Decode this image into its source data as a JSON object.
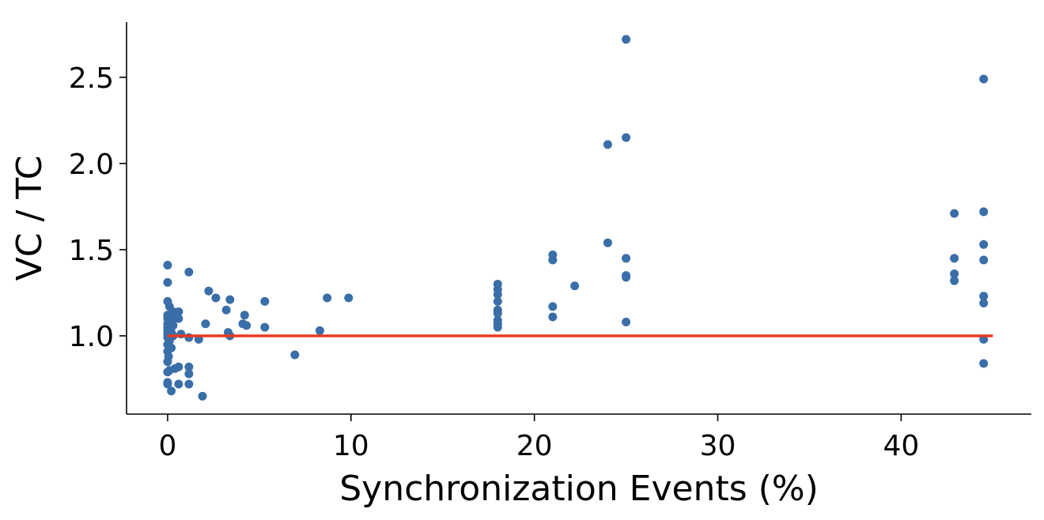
{
  "chart_data": {
    "type": "scatter",
    "title": "",
    "xlabel": "Synchronization Events (%)",
    "ylabel": "VC / TC",
    "xlim": [
      -2.24,
      47.1
    ],
    "ylim": [
      0.546,
      2.82
    ],
    "xticks": [
      0,
      10,
      20,
      30,
      40
    ],
    "xtick_labels": [
      "0",
      "10",
      "20",
      "30",
      "40"
    ],
    "yticks": [
      1.0,
      1.5,
      2.0,
      2.5
    ],
    "ytick_labels": [
      "1.0",
      "1.5",
      "2.0",
      "2.5"
    ],
    "grid": false,
    "point_color": "#3a6ea8",
    "reference_line": {
      "y": 1.0,
      "x": [
        0,
        45
      ],
      "color": "#e8391f"
    },
    "points": [
      [
        0,
        1.41
      ],
      [
        0,
        1.31
      ],
      [
        1.16,
        1.37
      ],
      [
        0,
        1.2
      ],
      [
        0.1,
        1.17
      ],
      [
        0.6,
        1.14
      ],
      [
        0.3,
        1.14
      ],
      [
        0.2,
        1.12
      ],
      [
        0,
        1.12
      ],
      [
        0.4,
        1.1
      ],
      [
        0.6,
        1.1
      ],
      [
        0,
        1.1
      ],
      [
        0.2,
        1.08
      ],
      [
        0,
        1.07
      ],
      [
        0.3,
        1.06
      ],
      [
        0,
        1.05
      ],
      [
        0.1,
        1.04
      ],
      [
        0,
        1.03
      ],
      [
        0.2,
        1.02
      ],
      [
        0,
        1.01
      ],
      [
        0.3,
        1.0
      ],
      [
        0,
        0.99
      ],
      [
        0.1,
        0.97
      ],
      [
        0,
        0.95
      ],
      [
        0.2,
        0.93
      ],
      [
        0,
        0.91
      ],
      [
        0.05,
        0.88
      ],
      [
        0,
        0.85
      ],
      [
        2.24,
        1.26
      ],
      [
        2.63,
        1.22
      ],
      [
        3.4,
        1.21
      ],
      [
        3.2,
        1.15
      ],
      [
        4.2,
        1.12
      ],
      [
        4.1,
        1.07
      ],
      [
        4.3,
        1.06
      ],
      [
        5.3,
        1.2
      ],
      [
        5.3,
        1.05
      ],
      [
        2.07,
        1.07
      ],
      [
        3.3,
        1.02
      ],
      [
        3.4,
        1.0
      ],
      [
        0.73,
        1.01
      ],
      [
        1.16,
        0.99
      ],
      [
        1.7,
        0.98
      ],
      [
        6.94,
        0.89
      ],
      [
        8.3,
        1.03
      ],
      [
        8.7,
        1.22
      ],
      [
        9.87,
        1.22
      ],
      [
        1.16,
        0.82
      ],
      [
        1.16,
        0.78
      ],
      [
        1.16,
        0.72
      ],
      [
        0.6,
        0.72
      ],
      [
        1.9,
        0.65
      ],
      [
        0.2,
        0.68
      ],
      [
        0,
        0.72
      ],
      [
        0,
        0.73
      ],
      [
        0,
        0.79
      ],
      [
        0.4,
        0.81
      ],
      [
        0.6,
        0.82
      ],
      [
        0.1,
        0.8
      ],
      [
        18,
        1.3
      ],
      [
        18,
        1.27
      ],
      [
        18,
        1.24
      ],
      [
        18,
        1.2
      ],
      [
        18,
        1.15
      ],
      [
        18,
        1.13
      ],
      [
        18,
        1.09
      ],
      [
        18,
        1.07
      ],
      [
        18,
        1.05
      ],
      [
        21,
        1.47
      ],
      [
        21,
        1.44
      ],
      [
        21,
        1.17
      ],
      [
        21,
        1.11
      ],
      [
        22.2,
        1.29
      ],
      [
        24,
        2.11
      ],
      [
        24,
        1.54
      ],
      [
        25,
        2.72
      ],
      [
        25,
        2.15
      ],
      [
        25,
        1.45
      ],
      [
        25,
        1.35
      ],
      [
        25,
        1.34
      ],
      [
        25,
        1.08
      ],
      [
        42.9,
        1.71
      ],
      [
        42.9,
        1.45
      ],
      [
        42.9,
        1.36
      ],
      [
        42.9,
        1.32
      ],
      [
        44.5,
        2.49
      ],
      [
        44.5,
        1.72
      ],
      [
        44.5,
        1.53
      ],
      [
        44.5,
        1.44
      ],
      [
        44.5,
        1.23
      ],
      [
        44.5,
        1.19
      ],
      [
        44.5,
        0.98
      ],
      [
        44.5,
        0.84
      ]
    ]
  }
}
